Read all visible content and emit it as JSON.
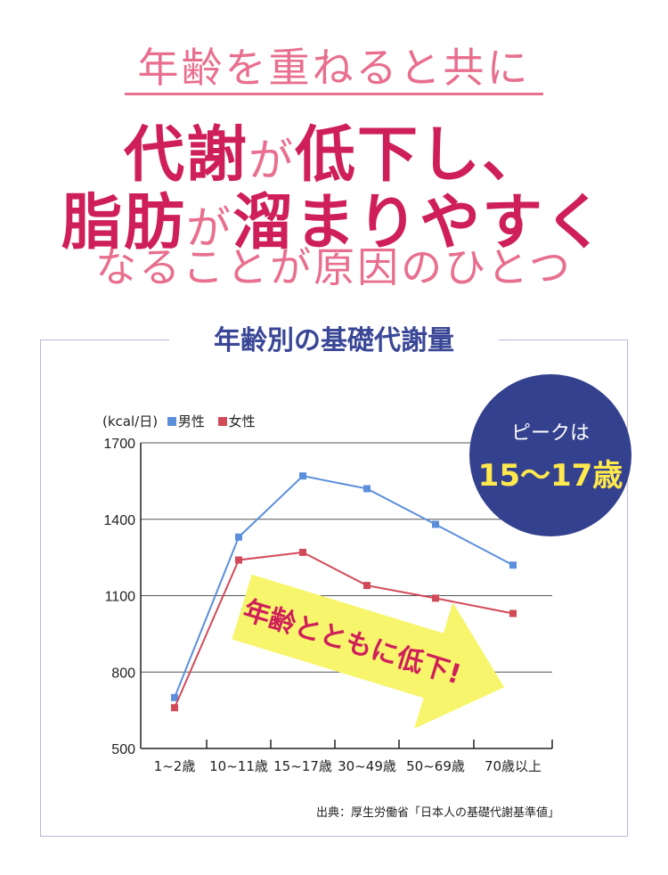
{
  "headline": {
    "line1": "年齢を重ねると共に",
    "line2_a": "代謝",
    "line2_b": "が",
    "line2_c": "低下し、",
    "line3_a": "脂肪",
    "line3_b": "が",
    "line3_c": "溜まりやすく",
    "line4": "なることが原因のひとつ"
  },
  "chart_title": "年齢別の基礎代謝量",
  "peak_badge": {
    "label": "ピークは",
    "value": "15〜17歳"
  },
  "arrow_label": "年齢とともに低下!",
  "unit_label": "(kcal/日)",
  "source_note": "出典：厚生労働省「日本人の基礎代謝基準値」",
  "colors": {
    "male": "#5b8fdc",
    "female": "#d14a58",
    "accent": "#cf1f5a",
    "badge": "#34418e",
    "arrow": "#f7f56c"
  },
  "chart_data": {
    "type": "line",
    "categories": [
      "1~2歳",
      "10~11歳",
      "15~17歳",
      "30~49歳",
      "50~69歳",
      "70歳以上"
    ],
    "series": [
      {
        "name": "男性",
        "values": [
          700,
          1330,
          1570,
          1520,
          1380,
          1220
        ]
      },
      {
        "name": "女性",
        "values": [
          660,
          1240,
          1270,
          1140,
          1090,
          1030
        ]
      }
    ],
    "yticks": [
      500,
      800,
      1100,
      1400,
      1700
    ],
    "ylim": [
      500,
      1700
    ],
    "ylabel": "(kcal/日)",
    "grid": true,
    "legend_position": "top-left"
  }
}
